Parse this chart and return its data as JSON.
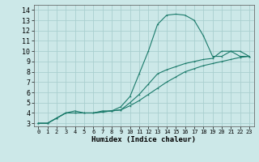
{
  "background_color": "#cce8e8",
  "grid_color": "#aacfcf",
  "line_color": "#1a7a6a",
  "xlabel": "Humidex (Indice chaleur)",
  "xlim": [
    -0.5,
    23.5
  ],
  "ylim": [
    2.7,
    14.5
  ],
  "xticks": [
    0,
    1,
    2,
    3,
    4,
    5,
    6,
    7,
    8,
    9,
    10,
    11,
    12,
    13,
    14,
    15,
    16,
    17,
    18,
    19,
    20,
    21,
    22,
    23
  ],
  "yticks": [
    3,
    4,
    5,
    6,
    7,
    8,
    9,
    10,
    11,
    12,
    13,
    14
  ],
  "line1_x": [
    0,
    1,
    2,
    3,
    4,
    5,
    6,
    7,
    8,
    9,
    10,
    11,
    12,
    13,
    14,
    15,
    16,
    17,
    18,
    19,
    20,
    21,
    22,
    23
  ],
  "line1_y": [
    3.0,
    3.0,
    3.5,
    4.0,
    4.0,
    4.0,
    4.0,
    4.1,
    4.2,
    4.3,
    4.7,
    5.2,
    5.8,
    6.4,
    7.0,
    7.5,
    8.0,
    8.3,
    8.6,
    8.8,
    9.0,
    9.2,
    9.4,
    9.5
  ],
  "line2_x": [
    0,
    1,
    2,
    3,
    4,
    5,
    6,
    7,
    8,
    9,
    10,
    11,
    12,
    13,
    14,
    15,
    16,
    17,
    18,
    19,
    20,
    21,
    22,
    23
  ],
  "line2_y": [
    3.0,
    3.0,
    3.5,
    4.0,
    4.2,
    4.0,
    4.0,
    4.2,
    4.2,
    4.6,
    5.6,
    7.8,
    10.0,
    12.6,
    13.5,
    13.6,
    13.5,
    13.0,
    11.5,
    9.5,
    9.5,
    10.0,
    10.0,
    9.5
  ],
  "line3_x": [
    0,
    1,
    2,
    3,
    4,
    5,
    6,
    7,
    8,
    9,
    10,
    11,
    12,
    13,
    14,
    15,
    16,
    17,
    18,
    19,
    20,
    21,
    22,
    23
  ],
  "line3_y": [
    3.0,
    3.0,
    3.5,
    4.0,
    4.0,
    4.0,
    4.0,
    4.1,
    4.2,
    4.3,
    5.0,
    5.8,
    6.8,
    7.8,
    8.2,
    8.5,
    8.8,
    9.0,
    9.2,
    9.3,
    10.0,
    10.0,
    9.5,
    9.5
  ]
}
